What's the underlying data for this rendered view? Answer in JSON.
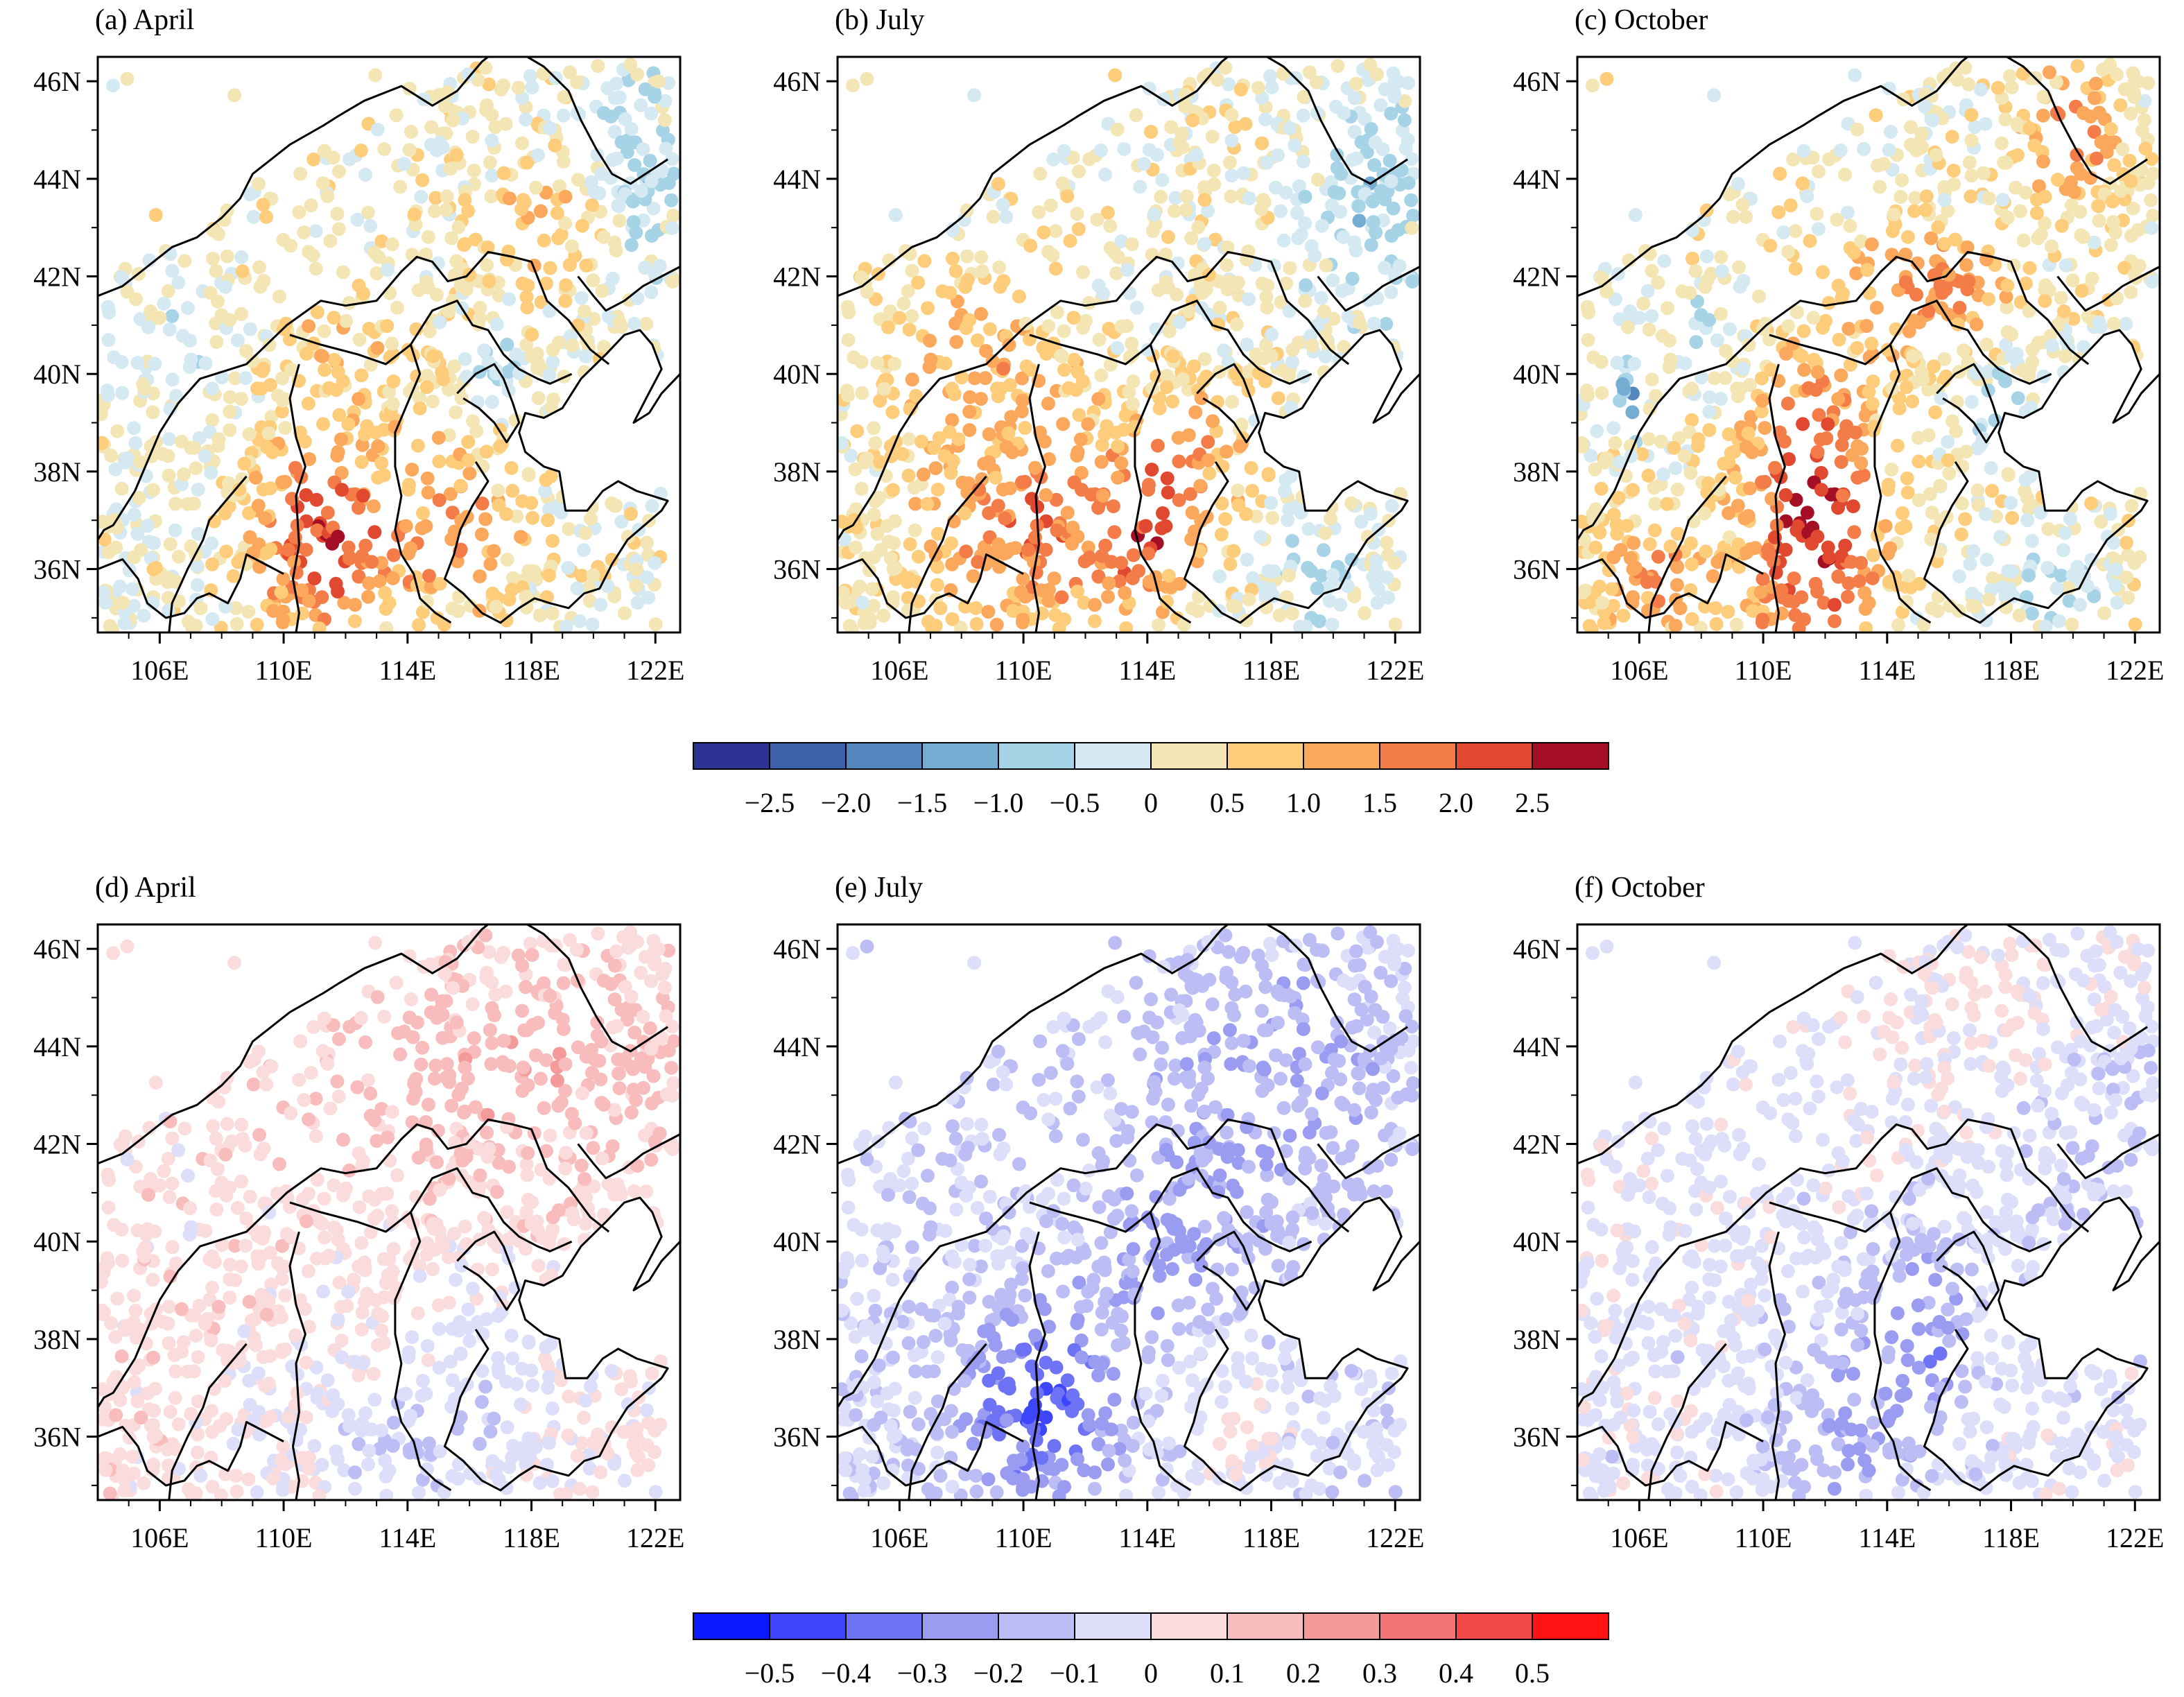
{
  "panels": [
    {
      "title": "(a) April",
      "field": "top",
      "month": "april"
    },
    {
      "title": "(b) July",
      "field": "top",
      "month": "july"
    },
    {
      "title": "(c) October",
      "field": "top",
      "month": "october"
    },
    {
      "title": "(d) April",
      "field": "bottom",
      "month": "april"
    },
    {
      "title": "(e) July",
      "field": "bottom",
      "month": "july"
    },
    {
      "title": "(f) October",
      "field": "bottom",
      "month": "october"
    }
  ],
  "axes": {
    "x_ticks": [
      "106E",
      "110E",
      "114E",
      "118E",
      "122E"
    ],
    "x_values": [
      106,
      110,
      114,
      118,
      122
    ],
    "y_ticks": [
      "46N",
      "44N",
      "42N",
      "40N",
      "38N",
      "36N"
    ],
    "y_values": [
      46,
      44,
      42,
      40,
      38,
      36
    ],
    "lon_range": [
      104.0,
      122.8
    ],
    "lat_range": [
      34.7,
      46.5
    ]
  },
  "colorbar_top": {
    "labels": [
      "−2.5",
      "−2.0",
      "−1.5",
      "−1.0",
      "−0.5",
      "0",
      "0.5",
      "1.0",
      "1.5",
      "2.0",
      "2.5"
    ],
    "bounds": [
      -2.5,
      -2.0,
      -1.5,
      -1.0,
      -0.5,
      0,
      0.5,
      1.0,
      1.5,
      2.0,
      2.5
    ],
    "colors": [
      "#2d3392",
      "#3c60a9",
      "#5485bd",
      "#75add2",
      "#a6d3e6",
      "#d4e9f1",
      "#f3e6b4",
      "#fdcd7c",
      "#fba75c",
      "#f47c48",
      "#e0492f",
      "#a50f26"
    ]
  },
  "colorbar_bottom": {
    "labels": [
      "−0.5",
      "−0.4",
      "−0.3",
      "−0.2",
      "−0.1",
      "0",
      "0.1",
      "0.2",
      "0.3",
      "0.4",
      "0.5"
    ],
    "bounds": [
      -0.5,
      -0.4,
      -0.3,
      -0.2,
      -0.1,
      0,
      0.1,
      0.2,
      0.3,
      0.4,
      0.5
    ],
    "colors": [
      "#0a1aff",
      "#3d46fb",
      "#6e72f5",
      "#9a9cf2",
      "#bcbdf5",
      "#dddef9",
      "#fbdcdc",
      "#f8bcbc",
      "#f59a9a",
      "#f47474",
      "#f24a4a",
      "#ff1212"
    ]
  }
}
